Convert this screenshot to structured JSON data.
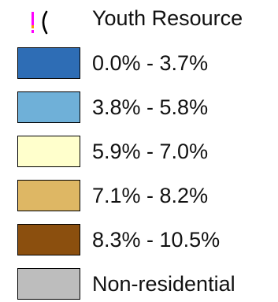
{
  "legend": {
    "poi": {
      "icon": "youth-resource-icon",
      "label": "Youth Resource",
      "icon_colors": [
        "#ff00ff",
        "#ff9900",
        "#000000"
      ]
    },
    "classes": [
      {
        "label": "0.0% - 3.7%",
        "color": "#2e6db5"
      },
      {
        "label": "3.8% - 5.8%",
        "color": "#6fb0d8"
      },
      {
        "label": "5.9% - 7.0%",
        "color": "#ffffcc"
      },
      {
        "label": "7.1% - 8.2%",
        "color": "#deb764"
      },
      {
        "label": "8.3% - 10.5%",
        "color": "#8b4f0e"
      },
      {
        "label": "Non-residential",
        "color": "#bdbdbd"
      }
    ]
  }
}
